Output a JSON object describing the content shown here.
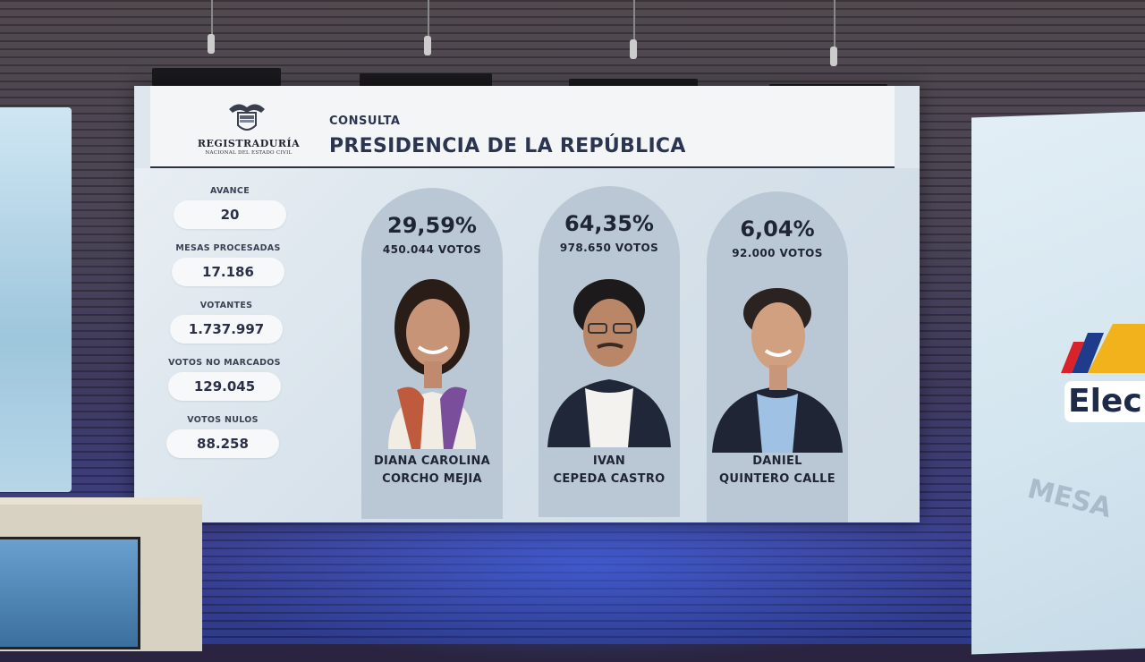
{
  "header": {
    "institution": "REGISTRADURÍA",
    "institution_sub": "NACIONAL DEL ESTADO CIVIL",
    "subtitle": "CONSULTA",
    "title": "PRESIDENCIA DE LA REPÚBLICA"
  },
  "stats": [
    {
      "label": "AVANCE",
      "value": "20"
    },
    {
      "label": "MESAS PROCESADAS",
      "value": "17.186"
    },
    {
      "label": "VOTANTES",
      "value": "1.737.997"
    },
    {
      "label": "VOTOS NO MARCADOS",
      "value": "129.045"
    },
    {
      "label": "VOTOS NULOS",
      "value": "88.258"
    }
  ],
  "candidates": [
    {
      "percent": "29,59%",
      "votes": "450.044 VOTOS",
      "name_line1": "DIANA CAROLINA",
      "name_line2": "CORCHO MEJIA"
    },
    {
      "percent": "64,35%",
      "votes": "978.650 VOTOS",
      "name_line1": "IVAN",
      "name_line2": "CEPEDA CASTRO"
    },
    {
      "percent": "6,04%",
      "votes": "92.000 VOTOS",
      "name_line1": "DANIEL",
      "name_line2": "QUINTERO CALLE"
    }
  ],
  "banner": {
    "brand_text": "Elec",
    "side_text": "MESA"
  },
  "colors": {
    "card_bg": "#b9c8d4",
    "header_text": "#2b3550",
    "screen_bg": "#dfe7ee"
  }
}
